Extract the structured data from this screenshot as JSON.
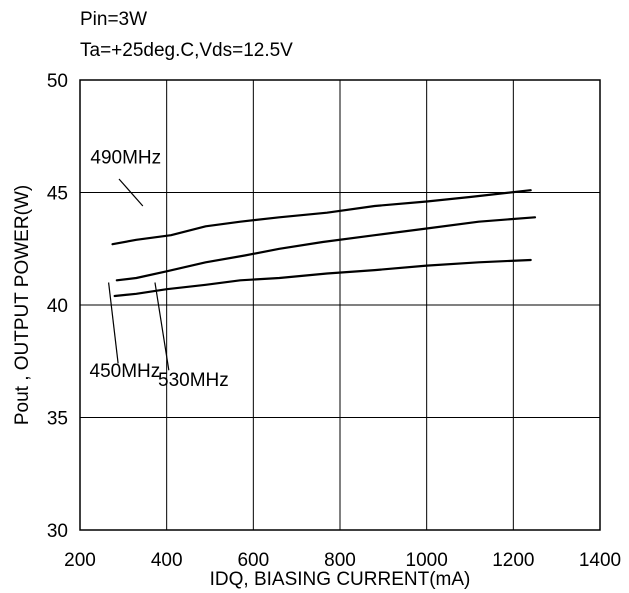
{
  "chart_data": {
    "type": "line",
    "title": "",
    "annotations": [
      "Pin=3W",
      "Ta=+25deg.C,Vds=12.5V"
    ],
    "xlabel": "IDQ, BIASING CURRENT(mA)",
    "ylabel": "Pout , OUTPUT POWER(W)",
    "xlim": [
      200,
      1400
    ],
    "ylim": [
      30,
      50
    ],
    "xticks": [
      200,
      400,
      600,
      800,
      1000,
      1200,
      1400
    ],
    "yticks": [
      30,
      35,
      40,
      45,
      50
    ],
    "xtick_labels": [
      "200",
      "400",
      "600",
      "800",
      "1000",
      "1200",
      "1400"
    ],
    "ytick_labels": [
      "30",
      "35",
      "40",
      "45",
      "50"
    ],
    "grid": true,
    "series": [
      {
        "name": "490MHz",
        "x": [
          275,
          330,
          410,
          490,
          570,
          660,
          770,
          880,
          1000,
          1100,
          1240
        ],
        "y": [
          42.7,
          42.9,
          43.1,
          43.5,
          43.7,
          43.9,
          44.1,
          44.4,
          44.6,
          44.8,
          45.1
        ],
        "label_at": [
          224,
          46.3
        ],
        "leader": [
          [
            290,
            45.6
          ],
          [
            345,
            44.4
          ]
        ]
      },
      {
        "name": "450MHz",
        "x": [
          285,
          330,
          400,
          490,
          580,
          660,
          760,
          880,
          1000,
          1120,
          1250
        ],
        "y": [
          41.1,
          41.2,
          41.5,
          41.9,
          42.2,
          42.5,
          42.8,
          43.1,
          43.4,
          43.7,
          43.9
        ],
        "label_at": [
          222,
          36.8
        ],
        "leader": [
          [
            288,
            37.4
          ],
          [
            266,
            41.0
          ]
        ]
      },
      {
        "name": "530MHz",
        "x": [
          280,
          330,
          400,
          490,
          570,
          660,
          770,
          880,
          1000,
          1120,
          1240
        ],
        "y": [
          40.4,
          40.5,
          40.7,
          40.9,
          41.1,
          41.2,
          41.4,
          41.55,
          41.75,
          41.9,
          42.0
        ],
        "label_at": [
          380,
          36.4
        ],
        "leader": [
          [
            405,
            37.1
          ],
          [
            373,
            41.0
          ]
        ]
      }
    ]
  }
}
